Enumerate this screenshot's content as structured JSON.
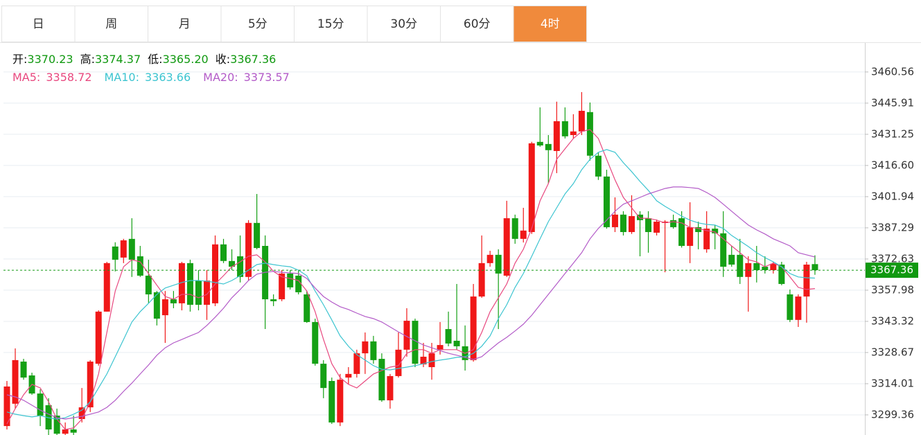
{
  "tabs": [
    "日",
    "周",
    "月",
    "5分",
    "15分",
    "30分",
    "60分",
    "4时"
  ],
  "active_tab": "4时",
  "chart_data": {
    "type": "candlestick",
    "quote": {
      "labels": [
        "开:",
        "高:",
        "低:",
        "收:"
      ],
      "values": [
        3370.23,
        3374.37,
        3365.2,
        3367.36
      ],
      "value_labels": [
        "3370.23",
        "3374.37",
        "3365.20",
        "3367.36"
      ],
      "color": "#119911"
    },
    "up_color": "#f01818",
    "down_color": "#15a015",
    "open": [
      3294.1,
      3304.6,
      3324.4,
      3317.9,
      3309.4,
      3303.9,
      3299.0,
      3290.5,
      3292.5,
      3297.4,
      3302.9,
      3323.4,
      3347.9,
      3378.5,
      3373.3,
      3382.1,
      3373.9,
      3364.8,
      3357.0,
      3346.2,
      3353.7,
      3351.8,
      3370.7,
      3362.5,
      3351.1,
      3351.8,
      3379.5,
      3371.7,
      3373.9,
      3364.2,
      3389.6,
      3378.8,
      3353.7,
      3353.7,
      3365.8,
      3364.8,
      3356.0,
      3343.0,
      3323.4,
      3315.3,
      3295.8,
      3316.9,
      3318.6,
      3328.3,
      3333.9,
      3325.7,
      3306.2,
      3317.6,
      3330.0,
      3343.6,
      3323.1,
      3321.8,
      3330.0,
      3339.7,
      3334.2,
      3331.6,
      3325.1,
      3355.0,
      3370.7,
      3374.6,
      3364.8,
      3391.8,
      3382.1,
      3385.3,
      3427.7,
      3426.7,
      3423.4,
      3437.4,
      3430.9,
      3432.6,
      3441.7,
      3421.2,
      3411.4,
      3387.6,
      3393.5,
      3385.3,
      3393.5,
      3391.8,
      3385.0,
      3389.6,
      3390.9,
      3391.8,
      3378.8,
      3387.6,
      3377.2,
      3386.9,
      3384.7,
      3374.6,
      3374.6,
      3364.2,
      3370.7,
      3369.0,
      3367.4,
      3370.0,
      3356.0,
      3344.0,
      3355.0,
      3370.23
    ],
    "high": [
      3315.3,
      3330.6,
      3325.7,
      3319.2,
      3311.4,
      3307.2,
      3302.3,
      3295.8,
      3299.0,
      3312.0,
      3325.1,
      3348.5,
      3371.3,
      3380.5,
      3382.1,
      3391.8,
      3378.8,
      3372.3,
      3357.6,
      3357.6,
      3357.6,
      3371.3,
      3372.3,
      3367.4,
      3367.4,
      3383.7,
      3382.1,
      3377.2,
      3383.7,
      3390.9,
      3403.2,
      3383.7,
      3356.0,
      3367.4,
      3367.4,
      3367.4,
      3357.6,
      3344.6,
      3325.1,
      3316.9,
      3318.6,
      3321.8,
      3330.0,
      3338.1,
      3336.5,
      3328.3,
      3318.6,
      3338.1,
      3349.5,
      3344.6,
      3333.2,
      3333.2,
      3343.0,
      3347.9,
      3360.9,
      3341.4,
      3360.9,
      3383.7,
      3376.5,
      3377.2,
      3400.0,
      3393.5,
      3396.7,
      3427.7,
      3443.9,
      3430.9,
      3446.6,
      3443.9,
      3440.7,
      3451.1,
      3446.2,
      3422.8,
      3414.6,
      3401.6,
      3395.1,
      3402.6,
      3395.1,
      3395.1,
      3391.2,
      3390.9,
      3393.5,
      3395.1,
      3399.3,
      3390.2,
      3395.1,
      3388.6,
      3395.1,
      3378.8,
      3382.1,
      3373.9,
      3378.8,
      3373.9,
      3371.3,
      3371.3,
      3358.3,
      3356.0,
      3371.3,
      3374.37
    ],
    "low": [
      3292.5,
      3302.3,
      3315.9,
      3308.8,
      3294.1,
      3289.9,
      3289.9,
      3289.9,
      3289.9,
      3295.8,
      3300.7,
      3322.5,
      3347.9,
      3366.8,
      3370.7,
      3364.2,
      3364.2,
      3351.8,
      3341.4,
      3333.2,
      3349.5,
      3348.5,
      3347.9,
      3348.5,
      3344.0,
      3350.5,
      3370.7,
      3367.4,
      3361.6,
      3362.5,
      3377.2,
      3339.7,
      3350.5,
      3352.8,
      3358.3,
      3356.0,
      3342.6,
      3322.5,
      3307.2,
      3295.1,
      3294.1,
      3313.7,
      3316.9,
      3318.6,
      3323.4,
      3305.5,
      3302.3,
      3316.9,
      3326.7,
      3321.8,
      3321.8,
      3315.9,
      3327.7,
      3331.6,
      3330.0,
      3320.2,
      3324.4,
      3354.4,
      3369.0,
      3339.7,
      3364.2,
      3379.8,
      3380.4,
      3384.4,
      3425.4,
      3408.1,
      3413.0,
      3429.3,
      3429.3,
      3430.9,
      3418.9,
      3409.8,
      3386.9,
      3385.3,
      3383.7,
      3384.4,
      3373.9,
      3375.6,
      3383.7,
      3366.4,
      3386.9,
      3378.0,
      3370.7,
      3377.2,
      3375.6,
      3377.2,
      3364.2,
      3369.0,
      3360.9,
      3347.9,
      3361.6,
      3365.8,
      3365.8,
      3360.3,
      3343.0,
      3340.7,
      3342.7,
      3365.2
    ],
    "close": [
      3312.7,
      3325.1,
      3316.9,
      3309.4,
      3299.0,
      3292.5,
      3290.5,
      3292.5,
      3291.0,
      3302.9,
      3324.4,
      3347.9,
      3370.7,
      3372.3,
      3381.4,
      3372.3,
      3364.8,
      3356.0,
      3344.6,
      3353.7,
      3351.8,
      3370.7,
      3351.1,
      3351.1,
      3362.5,
      3379.5,
      3371.7,
      3369.0,
      3364.2,
      3389.6,
      3377.8,
      3353.7,
      3352.8,
      3365.8,
      3359.3,
      3357.0,
      3343.0,
      3323.4,
      3312.0,
      3295.8,
      3315.9,
      3318.6,
      3328.3,
      3333.9,
      3325.1,
      3306.2,
      3317.6,
      3330.0,
      3343.6,
      3323.4,
      3326.7,
      3328.3,
      3332.2,
      3332.9,
      3331.6,
      3325.1,
      3355.0,
      3370.7,
      3374.6,
      3365.8,
      3391.8,
      3382.1,
      3386.0,
      3427.0,
      3426.0,
      3423.8,
      3437.4,
      3430.3,
      3432.6,
      3442.3,
      3421.2,
      3411.4,
      3387.6,
      3393.5,
      3385.3,
      3392.8,
      3390.9,
      3385.3,
      3390.2,
      3390.2,
      3387.6,
      3378.8,
      3387.6,
      3385.3,
      3386.9,
      3384.7,
      3369.0,
      3370.0,
      3364.2,
      3370.7,
      3367.4,
      3367.4,
      3370.4,
      3360.9,
      3344.0,
      3355.0,
      3370.0,
      3367.36
    ],
    "series": [
      {
        "name": "MA5:",
        "color": "#e8487f",
        "values": [
          3295.1,
          3302.3,
          3308.8,
          3313.7,
          3312.0,
          3305.5,
          3297.4,
          3292.5,
          3293.2,
          3297.4,
          3305.5,
          3318.6,
          3338.1,
          3357.6,
          3369.0,
          3372.3,
          3371.3,
          3365.8,
          3360.3,
          3355.0,
          3353.7,
          3356.0,
          3356.0,
          3354.4,
          3356.0,
          3360.9,
          3364.8,
          3369.0,
          3371.3,
          3373.9,
          3374.6,
          3371.3,
          3366.8,
          3364.2,
          3363.5,
          3362.5,
          3357.6,
          3347.9,
          3334.8,
          3323.4,
          3316.9,
          3313.7,
          3312.0,
          3315.3,
          3318.6,
          3320.2,
          3321.8,
          3322.5,
          3328.3,
          3330.0,
          3330.0,
          3328.3,
          3330.0,
          3330.0,
          3330.0,
          3328.3,
          3330.0,
          3338.1,
          3347.9,
          3354.4,
          3360.9,
          3370.7,
          3377.2,
          3387.0,
          3400.0,
          3408.1,
          3419.5,
          3424.4,
          3429.3,
          3432.6,
          3433.5,
          3429.3,
          3419.5,
          3409.8,
          3401.6,
          3396.7,
          3391.8,
          3391.8,
          3390.9,
          3389.6,
          3390.2,
          3389.6,
          3387.6,
          3387.0,
          3386.0,
          3385.3,
          3382.1,
          3378.8,
          3375.6,
          3372.3,
          3371.3,
          3369.0,
          3370.7,
          3369.0,
          3364.2,
          3359.3,
          3358.3,
          3358.72
        ]
      },
      {
        "name": "MA10:",
        "color": "#3cc4d0",
        "values": [
          3300.7,
          3299.7,
          3299.0,
          3298.4,
          3299.0,
          3298.0,
          3297.4,
          3298.0,
          3299.7,
          3301.6,
          3305.5,
          3312.0,
          3318.6,
          3326.7,
          3334.8,
          3343.0,
          3347.9,
          3351.8,
          3356.0,
          3359.0,
          3360.3,
          3361.6,
          3362.5,
          3362.5,
          3362.2,
          3361.6,
          3360.9,
          3362.5,
          3364.8,
          3367.4,
          3370.0,
          3370.7,
          3370.0,
          3369.4,
          3369.0,
          3367.4,
          3364.8,
          3357.6,
          3351.1,
          3344.0,
          3336.5,
          3331.6,
          3327.7,
          3325.1,
          3322.5,
          3320.8,
          3320.5,
          3321.2,
          3321.8,
          3322.5,
          3323.4,
          3324.4,
          3325.1,
          3325.7,
          3326.4,
          3326.7,
          3328.3,
          3331.6,
          3336.5,
          3344.6,
          3351.1,
          3359.3,
          3365.8,
          3373.9,
          3382.1,
          3390.2,
          3396.7,
          3403.2,
          3408.1,
          3414.6,
          3419.5,
          3422.8,
          3424.1,
          3422.8,
          3417.9,
          3413.7,
          3409.1,
          3404.9,
          3400.0,
          3397.4,
          3395.1,
          3392.8,
          3390.9,
          3389.6,
          3388.9,
          3388.6,
          3387.0,
          3383.7,
          3381.1,
          3378.5,
          3375.6,
          3373.3,
          3371.3,
          3369.0,
          3365.8,
          3364.2,
          3363.8,
          3363.66
        ]
      },
      {
        "name": "MA20:",
        "color": "#b35bc8",
        "values": [
          3308.8,
          3307.8,
          3306.2,
          3303.9,
          3301.6,
          3299.7,
          3298.0,
          3297.4,
          3298.0,
          3298.7,
          3299.7,
          3300.7,
          3302.9,
          3306.2,
          3310.4,
          3314.3,
          3318.6,
          3322.8,
          3327.4,
          3330.9,
          3333.2,
          3334.8,
          3336.5,
          3338.1,
          3341.4,
          3345.3,
          3349.5,
          3354.4,
          3358.3,
          3362.5,
          3365.5,
          3366.4,
          3366.8,
          3366.4,
          3366.1,
          3365.8,
          3363.5,
          3359.0,
          3355.0,
          3352.4,
          3350.2,
          3348.9,
          3347.2,
          3345.6,
          3344.6,
          3343.0,
          3340.7,
          3338.4,
          3336.2,
          3334.2,
          3332.2,
          3330.9,
          3329.6,
          3328.3,
          3327.4,
          3326.4,
          3325.4,
          3326.7,
          3330.0,
          3333.2,
          3335.8,
          3338.8,
          3342.0,
          3346.2,
          3351.1,
          3356.0,
          3360.9,
          3365.8,
          3370.7,
          3375.6,
          3382.1,
          3387.0,
          3390.9,
          3395.1,
          3398.4,
          3400.0,
          3401.6,
          3403.2,
          3404.5,
          3405.8,
          3406.5,
          3406.5,
          3406.2,
          3405.8,
          3403.9,
          3401.6,
          3398.4,
          3395.1,
          3391.8,
          3388.6,
          3386.3,
          3384.4,
          3382.1,
          3380.5,
          3378.8,
          3375.6,
          3374.6,
          3373.57
        ]
      }
    ],
    "ylim": [
      3289.9,
      3474.2
    ],
    "yticks": [
      3460.56,
      3445.91,
      3431.25,
      {
        "value": 3416.6,
        "label": "3416.60"
      },
      3401.94,
      3387.29,
      3372.63,
      3357.98,
      3343.32,
      3328.67,
      3314.01,
      3299.36
    ],
    "grid": true,
    "price_line_color": "#119911"
  }
}
